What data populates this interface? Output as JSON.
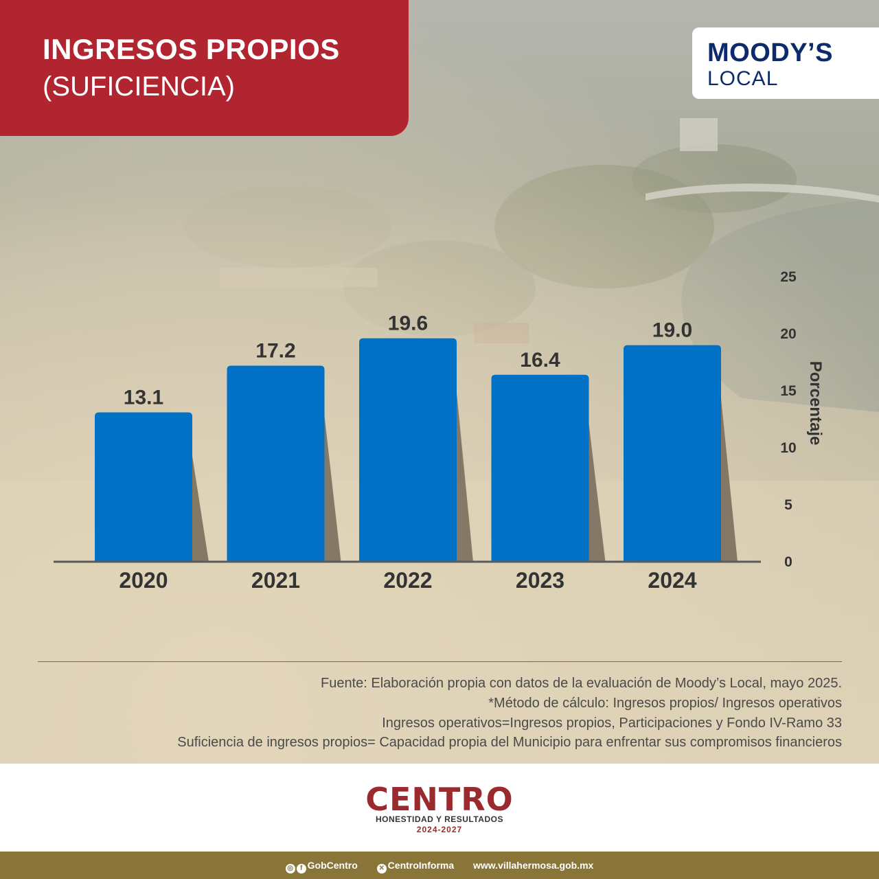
{
  "header": {
    "title_line1": "INGRESOS PROPIOS",
    "title_line2": "(SUFICIENCIA)"
  },
  "brand": {
    "top": "MOODY’S",
    "bottom": "LOCAL"
  },
  "chart_data": {
    "type": "bar",
    "categories": [
      "2020",
      "2021",
      "2022",
      "2023",
      "2024"
    ],
    "values": [
      13.1,
      17.2,
      19.6,
      16.4,
      19.0
    ],
    "data_labels": [
      "13.1",
      "17.2",
      "19.6",
      "16.4",
      "19.0"
    ],
    "title": "",
    "xlabel": "",
    "ylabel": "Porcentaje",
    "ylim": [
      0,
      25
    ],
    "yticks": [
      0,
      5,
      10,
      15,
      20,
      25
    ],
    "y_axis_position": "right",
    "grid": false,
    "bar_color": "#0071c5",
    "shadow_color": "#7a6f5c"
  },
  "notes": {
    "line1": "Fuente: Elaboración propia con datos de la evaluación de Moody’s Local, mayo 2025.",
    "line2": "*Método de cálculo: Ingresos propios/ Ingresos operativos",
    "line3": "Ingresos operativos=Ingresos propios, Participaciones y Fondo IV-Ramo 33",
    "line4": "Suficiencia de ingresos propios= Capacidad propia del Municipio para enfrentar sus compromisos financieros"
  },
  "logo": {
    "name": "CENTRO",
    "tagline": "HONESTIDAD Y RESULTADOS",
    "years": "2024-2027"
  },
  "footer": {
    "social1": "GobCentro",
    "social2": "CentroInforma",
    "website": "www.villahermosa.gob.mx"
  },
  "colors": {
    "title_bg": "#b0252f",
    "brand_text": "#0d2a6b",
    "footer_bar": "#8a7538"
  }
}
